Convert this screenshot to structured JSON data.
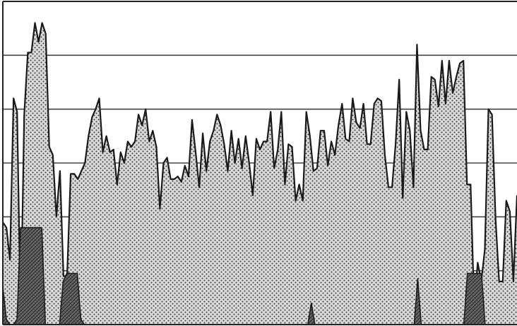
{
  "chart_data": {
    "type": "area",
    "title": "",
    "xlabel": "",
    "ylabel": "",
    "ylim": [
      0,
      6
    ],
    "grid": true,
    "legend": "none",
    "colors": {
      "line": "#1a1a1a",
      "dot_fill": "#d9d9d9",
      "hatch_fill": "#6b6b6b",
      "grid": "#444444",
      "background": "#ffffff"
    },
    "series": [
      {
        "style": "dotted-area",
        "values": [
          1.9,
          1.8,
          1.2,
          4.2,
          3.95,
          0.1,
          3.9,
          5.05,
          5.05,
          5.6,
          5.25,
          5.6,
          5.4,
          3.3,
          3.15,
          2.0,
          2.85,
          0.9,
          0.9,
          2.8,
          2.8,
          2.7,
          2.85,
          3.0,
          3.5,
          3.85,
          4.0,
          4.2,
          3.2,
          3.5,
          3.2,
          3.25,
          2.6,
          3.2,
          3.0,
          3.4,
          3.3,
          3.4,
          3.9,
          3.7,
          4.0,
          3.4,
          3.6,
          3.3,
          2.15,
          3.0,
          3.1,
          2.7,
          2.7,
          2.75,
          2.65,
          2.95,
          2.75,
          3.8,
          3.2,
          2.55,
          3.55,
          2.85,
          3.4,
          3.6,
          3.9,
          3.7,
          3.35,
          2.85,
          3.6,
          3.0,
          3.45,
          2.9,
          3.5,
          3.0,
          2.4,
          3.45,
          3.25,
          3.4,
          3.4,
          3.95,
          2.9,
          3.25,
          3.95,
          2.6,
          3.35,
          3.3,
          2.3,
          2.6,
          2.3,
          3.95,
          3.5,
          2.85,
          2.9,
          3.6,
          3.6,
          2.95,
          3.4,
          3.15,
          3.7,
          4.1,
          3.45,
          3.4,
          4.2,
          3.75,
          3.65,
          4.1,
          3.35,
          3.35,
          4.1,
          4.2,
          4.15,
          3.15,
          2.55,
          2.55,
          3.35,
          4.55,
          2.35,
          3.95,
          3.6,
          2.55,
          5.2,
          3.6,
          3.25,
          3.25,
          4.6,
          4.55,
          4.05,
          4.9,
          4.1,
          4.9,
          4.3,
          4.6,
          4.85,
          4.9,
          2.6,
          2.6,
          0.35,
          1.15,
          0.8,
          1.4,
          4.0,
          3.9,
          1.95,
          0.8,
          0.8,
          2.3,
          2.1,
          0.8,
          2.4
        ]
      },
      {
        "style": "hatched-area",
        "values": [
          0.7,
          0.1,
          0.0,
          0.0,
          0.1,
          1.8,
          1.8,
          1.8,
          1.8,
          1.8,
          1.8,
          1.8,
          0.0,
          0.0,
          0.0,
          0.0,
          0.0,
          0.8,
          0.95,
          0.95,
          0.95,
          0.95,
          0.1,
          0.0,
          0.0,
          0.0,
          0.0,
          0.0,
          0.0,
          0.0,
          0.0,
          0.0,
          0.0,
          0.0,
          0.0,
          0.0,
          0.0,
          0.0,
          0.0,
          0.0,
          0.0,
          0.0,
          0.0,
          0.0,
          0.0,
          0.0,
          0.0,
          0.0,
          0.0,
          0.0,
          0.0,
          0.0,
          0.0,
          0.0,
          0.0,
          0.0,
          0.0,
          0.0,
          0.0,
          0.0,
          0.0,
          0.0,
          0.0,
          0.0,
          0.0,
          0.0,
          0.0,
          0.0,
          0.0,
          0.0,
          0.0,
          0.0,
          0.0,
          0.0,
          0.0,
          0.0,
          0.0,
          0.0,
          0.0,
          0.0,
          0.0,
          0.0,
          0.0,
          0.0,
          0.0,
          0.0,
          0.0,
          0.4,
          0.0,
          0.0,
          0.0,
          0.0,
          0.0,
          0.0,
          0.0,
          0.0,
          0.0,
          0.0,
          0.0,
          0.0,
          0.0,
          0.0,
          0.0,
          0.0,
          0.0,
          0.0,
          0.0,
          0.0,
          0.0,
          0.0,
          0.0,
          0.0,
          0.0,
          0.0,
          0.0,
          0.0,
          0.0,
          0.85,
          0.0,
          0.0,
          0.0,
          0.0,
          0.0,
          0.0,
          0.0,
          0.0,
          0.0,
          0.0,
          0.0,
          0.0,
          0.0,
          0.95,
          0.95,
          0.95,
          0.95,
          0.95,
          0.0,
          0.0,
          0.0,
          0.0,
          0.0,
          0.0,
          0.0,
          0.0,
          0.0,
          0.0
        ]
      }
    ]
  }
}
